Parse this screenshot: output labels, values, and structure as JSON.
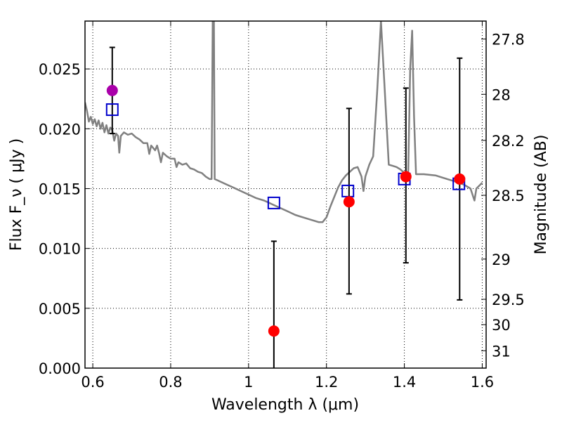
{
  "chart_data": {
    "type": "scatter",
    "xlabel": "Wavelength  λ (μm)",
    "ylabel": "Flux  F_ν  ( μJy )",
    "y2label": "Magnitude (AB)",
    "xlim": [
      0.58,
      1.61
    ],
    "ylim": [
      0.0,
      0.029
    ],
    "grid": true,
    "x_ticks": [
      0.6,
      0.8,
      1.0,
      1.2,
      1.4,
      1.6
    ],
    "x_tick_labels": [
      "0.6",
      "0.8",
      "1",
      "1.2",
      "1.4",
      "1.6"
    ],
    "y_ticks": [
      0.0,
      0.005,
      0.01,
      0.015,
      0.02,
      0.025
    ],
    "y_tick_labels": [
      "0.000",
      "0.005",
      "0.010",
      "0.015",
      "0.020",
      "0.025"
    ],
    "y2_ticks": [
      {
        "label": "27.8",
        "flux": 0.0275
      },
      {
        "label": "28",
        "flux": 0.02288
      },
      {
        "label": "28.2",
        "flux": 0.01903
      },
      {
        "label": "28.5",
        "flux": 0.01444
      },
      {
        "label": "29",
        "flux": 0.00911
      },
      {
        "label": "29.5",
        "flux": 0.00575
      },
      {
        "label": "30",
        "flux": 0.00363
      },
      {
        "label": "31",
        "flux": 0.00145
      }
    ],
    "model_spectrum": {
      "color": "#808080",
      "points": [
        [
          0.58,
          0.0222
        ],
        [
          0.585,
          0.0215
        ],
        [
          0.59,
          0.0206
        ],
        [
          0.595,
          0.021
        ],
        [
          0.6,
          0.0204
        ],
        [
          0.605,
          0.0208
        ],
        [
          0.61,
          0.0202
        ],
        [
          0.615,
          0.0207
        ],
        [
          0.62,
          0.02
        ],
        [
          0.625,
          0.0205
        ],
        [
          0.63,
          0.0197
        ],
        [
          0.635,
          0.0203
        ],
        [
          0.64,
          0.0196
        ],
        [
          0.645,
          0.0201
        ],
        [
          0.65,
          0.0199
        ],
        [
          0.655,
          0.019
        ],
        [
          0.66,
          0.0196
        ],
        [
          0.665,
          0.0194
        ],
        [
          0.668,
          0.018
        ],
        [
          0.672,
          0.0194
        ],
        [
          0.68,
          0.0197
        ],
        [
          0.69,
          0.0195
        ],
        [
          0.7,
          0.0196
        ],
        [
          0.71,
          0.0193
        ],
        [
          0.72,
          0.0191
        ],
        [
          0.73,
          0.0188
        ],
        [
          0.74,
          0.0188
        ],
        [
          0.745,
          0.0179
        ],
        [
          0.75,
          0.0186
        ],
        [
          0.76,
          0.0182
        ],
        [
          0.765,
          0.0186
        ],
        [
          0.77,
          0.018
        ],
        [
          0.775,
          0.0172
        ],
        [
          0.78,
          0.018
        ],
        [
          0.79,
          0.0177
        ],
        [
          0.8,
          0.0175
        ],
        [
          0.81,
          0.0175
        ],
        [
          0.815,
          0.0168
        ],
        [
          0.82,
          0.0172
        ],
        [
          0.83,
          0.017
        ],
        [
          0.84,
          0.0171
        ],
        [
          0.85,
          0.0167
        ],
        [
          0.86,
          0.0166
        ],
        [
          0.87,
          0.0164
        ],
        [
          0.88,
          0.0163
        ],
        [
          0.89,
          0.016
        ],
        [
          0.9,
          0.0158
        ],
        [
          0.905,
          0.0158
        ],
        [
          0.908,
          0.029
        ],
        [
          0.911,
          0.029
        ],
        [
          0.913,
          0.0158
        ],
        [
          0.92,
          0.0157
        ],
        [
          0.94,
          0.0154
        ],
        [
          0.96,
          0.0151
        ],
        [
          0.98,
          0.0148
        ],
        [
          1.0,
          0.0145
        ],
        [
          1.02,
          0.0142
        ],
        [
          1.04,
          0.014
        ],
        [
          1.06,
          0.0137
        ],
        [
          1.08,
          0.0134
        ],
        [
          1.1,
          0.0131
        ],
        [
          1.12,
          0.0128
        ],
        [
          1.14,
          0.0126
        ],
        [
          1.16,
          0.0124
        ],
        [
          1.18,
          0.0122
        ],
        [
          1.19,
          0.0122
        ],
        [
          1.2,
          0.0126
        ],
        [
          1.21,
          0.0135
        ],
        [
          1.22,
          0.0143
        ],
        [
          1.23,
          0.0151
        ],
        [
          1.24,
          0.0157
        ],
        [
          1.25,
          0.0161
        ],
        [
          1.26,
          0.0164
        ],
        [
          1.27,
          0.0167
        ],
        [
          1.28,
          0.0168
        ],
        [
          1.29,
          0.016
        ],
        [
          1.295,
          0.0148
        ],
        [
          1.3,
          0.016
        ],
        [
          1.31,
          0.017
        ],
        [
          1.32,
          0.0177
        ],
        [
          1.33,
          0.023
        ],
        [
          1.34,
          0.029
        ],
        [
          1.35,
          0.023
        ],
        [
          1.36,
          0.017
        ],
        [
          1.37,
          0.0169
        ],
        [
          1.38,
          0.0168
        ],
        [
          1.39,
          0.0166
        ],
        [
          1.4,
          0.0163
        ],
        [
          1.41,
          0.0164
        ],
        [
          1.415,
          0.025
        ],
        [
          1.42,
          0.0282
        ],
        [
          1.425,
          0.021
        ],
        [
          1.43,
          0.0162
        ],
        [
          1.45,
          0.0162
        ],
        [
          1.48,
          0.0161
        ],
        [
          1.5,
          0.0159
        ],
        [
          1.52,
          0.0157
        ],
        [
          1.54,
          0.0155
        ],
        [
          1.555,
          0.0153
        ],
        [
          1.57,
          0.015
        ],
        [
          1.58,
          0.014
        ],
        [
          1.585,
          0.015
        ],
        [
          1.6,
          0.0155
        ]
      ]
    },
    "model_photometry": {
      "marker": "open-square",
      "color": "#0000cc",
      "points": [
        [
          0.65,
          0.0216
        ],
        [
          1.065,
          0.0138
        ],
        [
          1.255,
          0.0148
        ],
        [
          1.4,
          0.0158
        ],
        [
          1.54,
          0.0154
        ]
      ]
    },
    "observed": {
      "marker": "filled-circle",
      "points": [
        {
          "x": 0.65,
          "y": 0.0232,
          "err_low": 0.0196,
          "err_high": 0.0268,
          "color": "#aa00aa"
        },
        {
          "x": 1.065,
          "y": 0.0031,
          "err_low": 0.0,
          "err_high": 0.0106,
          "color": "#ff0000"
        },
        {
          "x": 1.258,
          "y": 0.0139,
          "err_low": 0.0062,
          "err_high": 0.0217,
          "color": "#ff0000"
        },
        {
          "x": 1.404,
          "y": 0.016,
          "err_low": 0.0088,
          "err_high": 0.0234,
          "color": "#ff0000"
        },
        {
          "x": 1.542,
          "y": 0.0158,
          "err_low": 0.0057,
          "err_high": 0.0259,
          "color": "#ff0000"
        }
      ]
    }
  }
}
